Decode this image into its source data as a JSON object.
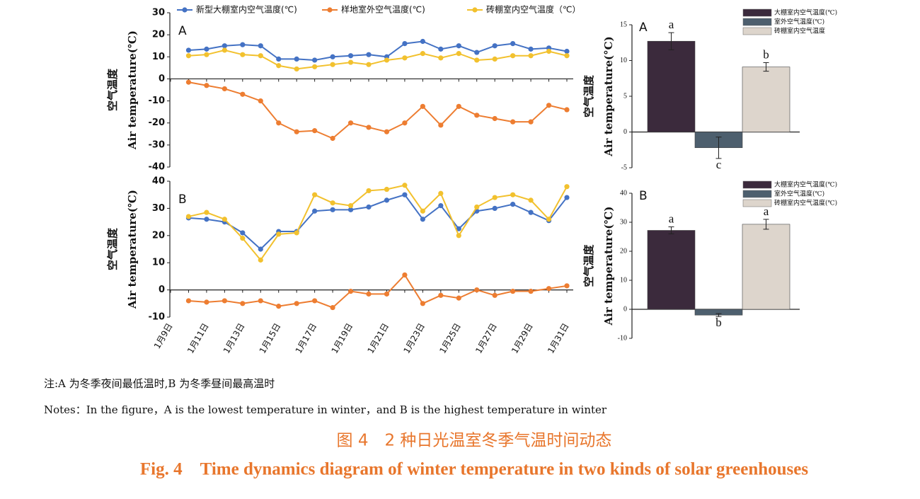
{
  "chart_data": [
    {
      "type": "line",
      "panel": "A",
      "ylabel_cn": "空气温度",
      "ylabel": "Air temperature(℃)",
      "ylim": [
        -40,
        30
      ],
      "yticks": [
        -40,
        -30,
        -20,
        -10,
        0,
        10,
        20,
        30
      ],
      "series": [
        {
          "name": "新型大棚室内空气温度(℃)",
          "color": "#4472c4",
          "values": [
            null,
            13,
            13.5,
            15,
            15.5,
            15,
            9,
            9,
            8.5,
            10,
            10.5,
            11,
            10,
            16,
            17,
            13.5,
            15,
            12,
            15,
            16,
            13.5,
            14,
            12.5
          ]
        },
        {
          "name": "样地室外空气温度(℃)",
          "color": "#ed7d31",
          "values": [
            null,
            -1.5,
            -3,
            -4.5,
            -7,
            -10,
            -20,
            -24,
            -23.5,
            -27,
            -20,
            -22,
            -24,
            -20,
            -12.5,
            -21,
            -12.5,
            -16.5,
            -18,
            -19.5,
            -19.5,
            -12,
            -14
          ]
        },
        {
          "name": "砖棚室内空气温度（℃）",
          "color": "#f2c12e",
          "values": [
            null,
            10.5,
            11,
            13,
            11,
            10.5,
            6,
            4.5,
            5.5,
            6.5,
            7.5,
            6.5,
            8.5,
            9.5,
            11.5,
            9.5,
            11.5,
            8.5,
            9,
            10.5,
            10.5,
            12.5,
            10.5
          ]
        }
      ]
    },
    {
      "type": "line",
      "panel": "B",
      "ylabel_cn": "空气温度",
      "ylabel": "Air temperature(℃)",
      "ylim": [
        -10,
        40
      ],
      "yticks": [
        -10,
        0,
        10,
        20,
        30,
        40
      ],
      "categories": [
        "1月9日",
        null,
        "1月11日",
        null,
        "1月13日",
        null,
        "1月15日",
        null,
        "1月17日",
        null,
        "1月19日",
        null,
        "1月21日",
        null,
        "1月23日",
        null,
        "1月25日",
        null,
        "1月27日",
        null,
        "1月29日",
        null,
        "1月31日"
      ],
      "series": [
        {
          "color": "#4472c4",
          "values": [
            null,
            26.5,
            26,
            25,
            21,
            15,
            21.5,
            21.5,
            29,
            29.5,
            29.5,
            30.5,
            33,
            35,
            26,
            31,
            22.5,
            29,
            30,
            31.5,
            28.5,
            25.5,
            34
          ]
        },
        {
          "color": "#ed7d31",
          "values": [
            null,
            -4,
            -4.5,
            -4,
            -5,
            -4,
            -6,
            -5,
            -4,
            -6.5,
            -0.5,
            -1.5,
            -1.5,
            5.5,
            -5,
            -2,
            -3,
            0,
            -2,
            -0.5,
            -0.5,
            0.5,
            1.5
          ]
        },
        {
          "color": "#f2c12e",
          "values": [
            null,
            27,
            28.5,
            26,
            19,
            11,
            20.5,
            21,
            35,
            32,
            31,
            36.5,
            37,
            38.5,
            29,
            35.5,
            20,
            30.5,
            34,
            35,
            33,
            26,
            38
          ]
        }
      ]
    },
    {
      "type": "bar",
      "panel": "A",
      "ylabel_cn": "空气温度",
      "ylabel": "Air temperature(°C)",
      "ylim": [
        -5,
        15
      ],
      "yticks": [
        -5,
        0,
        5,
        10,
        15
      ],
      "series": [
        {
          "name": "大棚室内空气温度(℃)",
          "color": "#3b2a3c",
          "values": [
            12.7
          ],
          "errors": [
            1.2
          ],
          "labels": [
            "a"
          ]
        },
        {
          "name": "室外空气温度(℃)",
          "color": "#4d5f6e",
          "values": [
            -2.2
          ],
          "errors": [
            1.5
          ],
          "labels": [
            "c"
          ]
        },
        {
          "name": "砖棚室内空气温度",
          "color": "#ddd5cc",
          "values": [
            9.1
          ],
          "errors": [
            0.6
          ],
          "labels": [
            "b"
          ]
        }
      ]
    },
    {
      "type": "bar",
      "panel": "B",
      "ylabel_cn": "空气温度",
      "ylabel": "Air temperature(℃)",
      "ylim": [
        -10,
        40
      ],
      "yticks": [
        -10,
        0,
        10,
        20,
        30,
        40
      ],
      "series": [
        {
          "name": "大棚室内空气温度(℃)",
          "color": "#3b2a3c",
          "values": [
            27.2
          ],
          "errors": [
            1.2
          ],
          "labels": [
            "a"
          ]
        },
        {
          "name": "室外空气温度(℃)",
          "color": "#4d5f6e",
          "values": [
            -2
          ],
          "errors": [
            0.5
          ],
          "labels": [
            "b"
          ]
        },
        {
          "name": "砖棚室内空气温度(℃)",
          "color": "#ddd5cc",
          "values": [
            29.3
          ],
          "errors": [
            1.7
          ],
          "labels": [
            "a"
          ]
        }
      ]
    }
  ],
  "notes": [
    "注:A 为冬季夜间最低温时,B 为冬季昼间最高温时",
    "Notes：In the figure，A is the lowest temperature in winter，and B is the highest temperature in winter"
  ],
  "caption_cn": "图 4　2 种日光温室冬季气温时间动态",
  "caption_en": "Fig. 4　Time dynamics diagram of winter temperature in two kinds of solar greenhouses"
}
